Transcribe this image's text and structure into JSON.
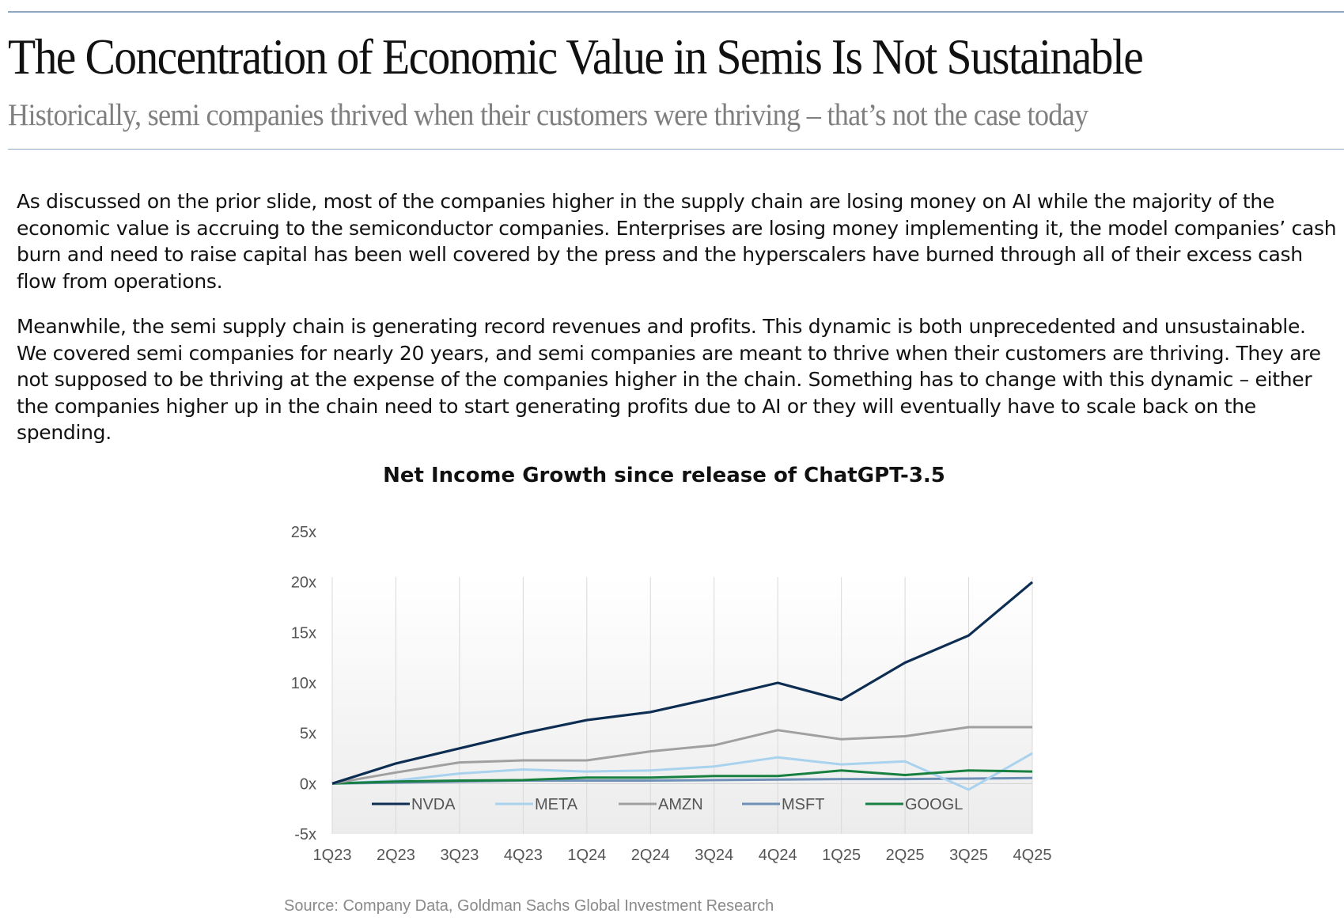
{
  "header": {
    "title": "The Concentration of Economic Value in Semis Is Not Sustainable",
    "subtitle": "Historically, semi companies thrived when their customers were thriving – that’s not the case today"
  },
  "body": {
    "paragraph_1": "As discussed on the prior slide, most of the companies higher in the supply chain are losing money on AI while the majority of the economic value is accruing to the semiconductor companies.  Enterprises are losing money implementing it, the model companies’ cash burn and need to raise capital has been well covered by the press and the hyperscalers have burned through all of their excess cash flow from operations.",
    "paragraph_2": "Meanwhile, the semi supply chain is generating record revenues and profits. This dynamic is both unprecedented and unsustainable.  We covered semi companies for nearly 20 years, and semi companies are meant to thrive when their customers are thriving.  They are not supposed to be thriving at the expense of the companies higher in the chain.  Something has to change with this dynamic – either the companies higher up in the chain need to start generating profits due to AI or they will eventually have to scale back on the spending."
  },
  "source": "Source: Company Data, Goldman Sachs Global Investment Research",
  "chart_data": {
    "type": "line",
    "title": "Net Income Growth since release of ChatGPT-3.5",
    "categories": [
      "1Q23",
      "2Q23",
      "3Q23",
      "4Q23",
      "1Q24",
      "2Q24",
      "3Q24",
      "4Q24",
      "1Q25",
      "2Q25",
      "3Q25",
      "4Q25"
    ],
    "y_ticks": [
      -5,
      0,
      5,
      10,
      15,
      20,
      25
    ],
    "y_tick_labels": [
      "-5x",
      "0x",
      "5x",
      "10x",
      "15x",
      "20x",
      "25x"
    ],
    "ylim": [
      -5,
      25
    ],
    "grid": "vertical",
    "legend_position": "inside-bottom",
    "series": [
      {
        "name": "NVDA",
        "color": "#0d2e52",
        "values": [
          0,
          2.0,
          3.5,
          5.0,
          6.3,
          7.1,
          8.5,
          10.0,
          8.3,
          12.0,
          14.7,
          20.0
        ]
      },
      {
        "name": "META",
        "color": "#a9d2ee",
        "values": [
          0,
          0.3,
          1.0,
          1.4,
          1.2,
          1.3,
          1.7,
          2.6,
          1.9,
          2.2,
          -0.6,
          3.0
        ]
      },
      {
        "name": "AMZN",
        "color": "#a0a0a0",
        "values": [
          0,
          1.1,
          2.1,
          2.3,
          2.3,
          3.2,
          3.8,
          5.3,
          4.4,
          4.7,
          5.6,
          5.6
        ]
      },
      {
        "name": "MSFT",
        "color": "#6f91b8",
        "values": [
          0,
          0.1,
          0.2,
          0.3,
          0.3,
          0.3,
          0.35,
          0.4,
          0.45,
          0.45,
          0.5,
          0.55
        ]
      },
      {
        "name": "GOOGL",
        "color": "#178040",
        "values": [
          0,
          0.2,
          0.3,
          0.35,
          0.6,
          0.6,
          0.75,
          0.75,
          1.3,
          0.85,
          1.3,
          1.2
        ]
      }
    ]
  }
}
